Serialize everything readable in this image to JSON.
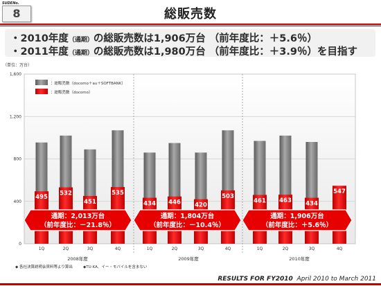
{
  "header": {
    "logo_text": "SUDENo.",
    "slide_number": "8",
    "title": "総販売数"
  },
  "bullets": [
    {
      "prefix": "・2010年度",
      "small": "（通期）",
      "rest": "の総販売数は1,906万台 （前年度比：＋5.6％）"
    },
    {
      "prefix": "・2011年度",
      "small": "（通期）",
      "rest": "の総販売数は1,980万台 （前年度比：＋3.9％）を目指す"
    }
  ],
  "unit_label": "（単位：万台）",
  "chart_data": {
    "type": "bar",
    "categories": [
      "1Q",
      "2Q",
      "3Q",
      "4Q",
      "1Q",
      "2Q",
      "3Q",
      "4Q",
      "1Q",
      "2Q",
      "3Q",
      "4Q"
    ],
    "groups": [
      {
        "label": "2008年度",
        "categories": [
          "1Q",
          "2Q",
          "3Q",
          "4Q"
        ],
        "callout_line1": "通期：2,013万台",
        "callout_line2": "（前年度比：－21.8％）"
      },
      {
        "label": "2009年度",
        "categories": [
          "1Q",
          "2Q",
          "3Q",
          "4Q"
        ],
        "callout_line1": "通期：1,804万台",
        "callout_line2": "（前年度比：－10.4％）"
      },
      {
        "label": "2010年度",
        "categories": [
          "1Q",
          "2Q",
          "3Q",
          "4Q"
        ],
        "callout_line1": "通期：1,906万台",
        "callout_line2": "（前年度比：＋5.6％）"
      }
    ],
    "series": [
      {
        "name": "：総販売数（docomo＋au＋SOFTBANK）",
        "color": "#8a8a8a",
        "values": [
          955,
          1020,
          890,
          1070,
          860,
          950,
          860,
          1070,
          970,
          1020,
          960,
          null
        ]
      },
      {
        "name": "：総販売数（docomo）",
        "color": "#e30000",
        "values": [
          495,
          532,
          451,
          535,
          434,
          446,
          420,
          503,
          461,
          463,
          434,
          547
        ]
      }
    ],
    "ylim": [
      0,
      1600
    ],
    "yticks": [
      "0",
      "400",
      "800",
      "1,200",
      "1,600"
    ],
    "grid": true,
    "legend": "top-left"
  },
  "footnotes": [
    "◆ 各社決算説明会資料等より算出",
    "◆TU-KA、イー・モバイルを含まない"
  ],
  "footer": {
    "results": "RESULTS FOR FY2010",
    "period": "April 2010 to March 2011"
  },
  "colors": {
    "accent": "#c00000",
    "bar_gray": "#8a8a8a",
    "bar_red": "#e30000",
    "callout_red": "#e60000"
  }
}
